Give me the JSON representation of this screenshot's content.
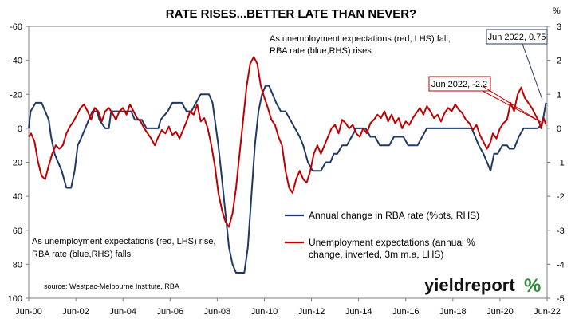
{
  "chart_data": {
    "type": "line",
    "title": "RATE RISES...BETTER LATE THAN NEVER?",
    "x_ticks": [
      "Jun-00",
      "Jun-02",
      "Jun-04",
      "Jun-06",
      "Jun-08",
      "Jun-10",
      "Jun-12",
      "Jun-14",
      "Jun-16",
      "Jun-18",
      "Jun-20",
      "Jun-22"
    ],
    "x_range": [
      2000.5,
      2022.5
    ],
    "left_axis": {
      "ticks": [
        "-60",
        "-40",
        "-20",
        "0",
        "20",
        "40",
        "60",
        "80",
        "100"
      ],
      "range": [
        -60,
        100
      ],
      "inverted": true
    },
    "right_axis": {
      "unit": "%",
      "ticks": [
        "3",
        "2",
        "1",
        "0",
        "-1",
        "-2",
        "-3",
        "-4",
        "-5"
      ],
      "range": [
        3,
        -5
      ]
    },
    "grid": false,
    "series": [
      {
        "name": "Annual change in RBA rate (%pts, RHS)",
        "axis": "right",
        "color": "#1f3864",
        "points": [
          [
            2000.5,
            0.0
          ],
          [
            2000.58,
            0.5
          ],
          [
            2000.8,
            0.75
          ],
          [
            2001.05,
            0.75
          ],
          [
            2001.2,
            0.5
          ],
          [
            2001.35,
            0.25
          ],
          [
            2001.45,
            -0.25
          ],
          [
            2001.6,
            -0.75
          ],
          [
            2001.75,
            -1.0
          ],
          [
            2001.9,
            -1.25
          ],
          [
            2002.0,
            -1.5
          ],
          [
            2002.1,
            -1.75
          ],
          [
            2002.3,
            -1.75
          ],
          [
            2002.45,
            -1.25
          ],
          [
            2002.58,
            -0.5
          ],
          [
            2002.75,
            -0.25
          ],
          [
            2002.9,
            0.0
          ],
          [
            2003.05,
            0.25
          ],
          [
            2003.2,
            0.5
          ],
          [
            2003.4,
            0.5
          ],
          [
            2003.5,
            0.25
          ],
          [
            2003.75,
            0.0
          ],
          [
            2003.9,
            0.0
          ],
          [
            2004.0,
            0.5
          ],
          [
            2004.2,
            0.5
          ],
          [
            2004.4,
            0.5
          ],
          [
            2004.55,
            0.5
          ],
          [
            2004.7,
            0.5
          ],
          [
            2004.85,
            0.5
          ],
          [
            2005.0,
            0.25
          ],
          [
            2005.1,
            0.25
          ],
          [
            2005.3,
            0.25
          ],
          [
            2005.5,
            0.0
          ],
          [
            2005.75,
            0.0
          ],
          [
            2006.0,
            0.0
          ],
          [
            2006.1,
            0.25
          ],
          [
            2006.4,
            0.5
          ],
          [
            2006.6,
            0.75
          ],
          [
            2006.8,
            0.75
          ],
          [
            2007.0,
            0.75
          ],
          [
            2007.2,
            0.5
          ],
          [
            2007.4,
            0.5
          ],
          [
            2007.6,
            0.75
          ],
          [
            2007.8,
            1.0
          ],
          [
            2008.0,
            1.0
          ],
          [
            2008.15,
            1.0
          ],
          [
            2008.3,
            0.75
          ],
          [
            2008.4,
            0.25
          ],
          [
            2008.55,
            -0.5
          ],
          [
            2008.7,
            -1.5
          ],
          [
            2008.85,
            -2.5
          ],
          [
            2009.0,
            -3.5
          ],
          [
            2009.15,
            -4.0
          ],
          [
            2009.3,
            -4.25
          ],
          [
            2009.5,
            -4.25
          ],
          [
            2009.65,
            -4.25
          ],
          [
            2009.8,
            -3.5
          ],
          [
            2009.95,
            -2.0
          ],
          [
            2010.1,
            -0.5
          ],
          [
            2010.25,
            0.5
          ],
          [
            2010.4,
            1.0
          ],
          [
            2010.55,
            1.25
          ],
          [
            2010.7,
            1.25
          ],
          [
            2010.85,
            1.0
          ],
          [
            2011.0,
            0.75
          ],
          [
            2011.2,
            0.5
          ],
          [
            2011.4,
            0.5
          ],
          [
            2011.6,
            0.25
          ],
          [
            2011.8,
            0.0
          ],
          [
            2012.0,
            -0.25
          ],
          [
            2012.15,
            -0.5
          ],
          [
            2012.35,
            -1.0
          ],
          [
            2012.55,
            -1.25
          ],
          [
            2012.7,
            -1.25
          ],
          [
            2012.9,
            -1.25
          ],
          [
            2013.1,
            -1.0
          ],
          [
            2013.3,
            -1.0
          ],
          [
            2013.45,
            -0.75
          ],
          [
            2013.6,
            -0.75
          ],
          [
            2013.8,
            -0.5
          ],
          [
            2014.0,
            -0.5
          ],
          [
            2014.2,
            -0.25
          ],
          [
            2014.4,
            0.0
          ],
          [
            2014.6,
            0.0
          ],
          [
            2014.8,
            0.0
          ],
          [
            2015.0,
            -0.25
          ],
          [
            2015.2,
            -0.25
          ],
          [
            2015.4,
            -0.5
          ],
          [
            2015.6,
            -0.5
          ],
          [
            2015.8,
            -0.5
          ],
          [
            2016.0,
            -0.25
          ],
          [
            2016.2,
            -0.25
          ],
          [
            2016.4,
            -0.25
          ],
          [
            2016.6,
            -0.5
          ],
          [
            2016.8,
            -0.5
          ],
          [
            2017.0,
            -0.5
          ],
          [
            2017.2,
            -0.25
          ],
          [
            2017.4,
            0.0
          ],
          [
            2017.6,
            0.0
          ],
          [
            2017.8,
            0.0
          ],
          [
            2018.0,
            0.0
          ],
          [
            2018.2,
            0.0
          ],
          [
            2018.4,
            0.0
          ],
          [
            2018.6,
            0.0
          ],
          [
            2018.8,
            0.0
          ],
          [
            2019.0,
            0.0
          ],
          [
            2019.3,
            0.0
          ],
          [
            2019.45,
            -0.25
          ],
          [
            2019.6,
            -0.5
          ],
          [
            2019.8,
            -0.75
          ],
          [
            2019.95,
            -1.0
          ],
          [
            2020.1,
            -1.25
          ],
          [
            2020.25,
            -0.75
          ],
          [
            2020.4,
            -0.75
          ],
          [
            2020.6,
            -0.5
          ],
          [
            2020.8,
            -0.5
          ],
          [
            2020.9,
            -0.6
          ],
          [
            2021.1,
            -0.6
          ],
          [
            2021.3,
            -0.25
          ],
          [
            2021.5,
            0.0
          ],
          [
            2021.7,
            0.0
          ],
          [
            2021.9,
            0.0
          ],
          [
            2022.1,
            0.0
          ],
          [
            2022.25,
            0.1
          ],
          [
            2022.35,
            0.35
          ],
          [
            2022.45,
            0.75
          ]
        ]
      },
      {
        "name": "Unemployment expectations (annual % change, inverted, 3m m.a, LHS)",
        "axis": "left",
        "color": "#c00000",
        "points": [
          [
            2000.5,
            5
          ],
          [
            2000.6,
            3
          ],
          [
            2000.75,
            8
          ],
          [
            2000.9,
            20
          ],
          [
            2001.05,
            28
          ],
          [
            2001.2,
            30
          ],
          [
            2001.35,
            22
          ],
          [
            2001.5,
            15
          ],
          [
            2001.65,
            10
          ],
          [
            2001.8,
            12
          ],
          [
            2001.95,
            10
          ],
          [
            2002.1,
            3
          ],
          [
            2002.25,
            -1
          ],
          [
            2002.4,
            -4
          ],
          [
            2002.55,
            -8
          ],
          [
            2002.7,
            -12
          ],
          [
            2002.85,
            -14
          ],
          [
            2003.0,
            -10
          ],
          [
            2003.15,
            -5
          ],
          [
            2003.3,
            -12
          ],
          [
            2003.45,
            -10
          ],
          [
            2003.6,
            -4
          ],
          [
            2003.75,
            -10
          ],
          [
            2003.9,
            -12
          ],
          [
            2004.05,
            -9
          ],
          [
            2004.2,
            -5
          ],
          [
            2004.35,
            -10
          ],
          [
            2004.5,
            -12
          ],
          [
            2004.65,
            -8
          ],
          [
            2004.8,
            -14
          ],
          [
            2004.95,
            -10
          ],
          [
            2005.1,
            -6
          ],
          [
            2005.25,
            -4
          ],
          [
            2005.4,
            0
          ],
          [
            2005.55,
            3
          ],
          [
            2005.7,
            6
          ],
          [
            2005.85,
            10
          ],
          [
            2006.0,
            5
          ],
          [
            2006.15,
            1
          ],
          [
            2006.3,
            3
          ],
          [
            2006.45,
            -1
          ],
          [
            2006.6,
            4
          ],
          [
            2006.75,
            2
          ],
          [
            2006.9,
            6
          ],
          [
            2007.05,
            1
          ],
          [
            2007.2,
            -4
          ],
          [
            2007.35,
            -10
          ],
          [
            2007.5,
            -8
          ],
          [
            2007.65,
            -14
          ],
          [
            2007.8,
            -4
          ],
          [
            2007.95,
            -6
          ],
          [
            2008.1,
            0
          ],
          [
            2008.25,
            10
          ],
          [
            2008.4,
            22
          ],
          [
            2008.55,
            38
          ],
          [
            2008.7,
            48
          ],
          [
            2008.85,
            55
          ],
          [
            2009.0,
            58
          ],
          [
            2009.15,
            50
          ],
          [
            2009.3,
            35
          ],
          [
            2009.45,
            15
          ],
          [
            2009.6,
            -5
          ],
          [
            2009.75,
            -25
          ],
          [
            2009.9,
            -38
          ],
          [
            2010.05,
            -42
          ],
          [
            2010.2,
            -38
          ],
          [
            2010.35,
            -25
          ],
          [
            2010.5,
            -18
          ],
          [
            2010.65,
            -12
          ],
          [
            2010.8,
            -5
          ],
          [
            2010.95,
            -2
          ],
          [
            2011.1,
            5
          ],
          [
            2011.25,
            10
          ],
          [
            2011.4,
            25
          ],
          [
            2011.55,
            35
          ],
          [
            2011.7,
            38
          ],
          [
            2011.85,
            30
          ],
          [
            2012.0,
            25
          ],
          [
            2012.15,
            30
          ],
          [
            2012.3,
            32
          ],
          [
            2012.45,
            25
          ],
          [
            2012.6,
            15
          ],
          [
            2012.75,
            10
          ],
          [
            2012.9,
            15
          ],
          [
            2013.05,
            10
          ],
          [
            2013.2,
            5
          ],
          [
            2013.35,
            0
          ],
          [
            2013.5,
            -2
          ],
          [
            2013.65,
            3
          ],
          [
            2013.8,
            -5
          ],
          [
            2013.95,
            -3
          ],
          [
            2014.1,
            0
          ],
          [
            2014.25,
            -2
          ],
          [
            2014.4,
            3
          ],
          [
            2014.55,
            5
          ],
          [
            2014.7,
            0
          ],
          [
            2014.85,
            3
          ],
          [
            2015.0,
            -3
          ],
          [
            2015.15,
            -5
          ],
          [
            2015.3,
            -8
          ],
          [
            2015.45,
            -6
          ],
          [
            2015.6,
            -10
          ],
          [
            2015.75,
            -4
          ],
          [
            2015.9,
            -8
          ],
          [
            2016.05,
            -3
          ],
          [
            2016.2,
            -6
          ],
          [
            2016.35,
            0
          ],
          [
            2016.5,
            -4
          ],
          [
            2016.65,
            -2
          ],
          [
            2016.8,
            -6
          ],
          [
            2016.95,
            -9
          ],
          [
            2017.1,
            -12
          ],
          [
            2017.25,
            -8
          ],
          [
            2017.4,
            -13
          ],
          [
            2017.55,
            -10
          ],
          [
            2017.7,
            -6
          ],
          [
            2017.85,
            -8
          ],
          [
            2018.0,
            -4
          ],
          [
            2018.15,
            -9
          ],
          [
            2018.3,
            -12
          ],
          [
            2018.45,
            -10
          ],
          [
            2018.6,
            -14
          ],
          [
            2018.75,
            -11
          ],
          [
            2018.9,
            -9
          ],
          [
            2019.05,
            -5
          ],
          [
            2019.2,
            -3
          ],
          [
            2019.35,
            1
          ],
          [
            2019.5,
            -2
          ],
          [
            2019.65,
            4
          ],
          [
            2019.8,
            8
          ],
          [
            2019.95,
            12
          ],
          [
            2020.1,
            8
          ],
          [
            2020.2,
            3
          ],
          [
            2020.35,
            6
          ],
          [
            2020.5,
            0
          ],
          [
            2020.65,
            -3
          ],
          [
            2020.8,
            -5
          ],
          [
            2020.95,
            -15
          ],
          [
            2021.1,
            -10
          ],
          [
            2021.25,
            -20
          ],
          [
            2021.4,
            -24
          ],
          [
            2021.55,
            -18
          ],
          [
            2021.7,
            -15
          ],
          [
            2021.85,
            -12
          ],
          [
            2022.0,
            -8
          ],
          [
            2022.15,
            -4
          ],
          [
            2022.25,
            0
          ],
          [
            2022.35,
            -6
          ],
          [
            2022.45,
            -2.2
          ]
        ]
      }
    ],
    "annotations": {
      "top_text": [
        "As unemployment expectations (red, LHS) fall,",
        "RBA rate (blue,RHS) rises."
      ],
      "bottom_text": [
        "As unemployment expectations (red, LHS) rise,",
        "RBA rate (blue,RHS) falls."
      ],
      "callout_blue": "Jun 2022, 0.75",
      "callout_red": "Jun 2022, -2.2",
      "source": "source: Westpac-Melbourne Institute, RBA"
    },
    "legend_placement": "bottom-right",
    "brand": {
      "text": "yieldreport",
      "pct": "%",
      "pct_green": "#2e8b3a",
      "pct_red": "#c00000"
    }
  }
}
